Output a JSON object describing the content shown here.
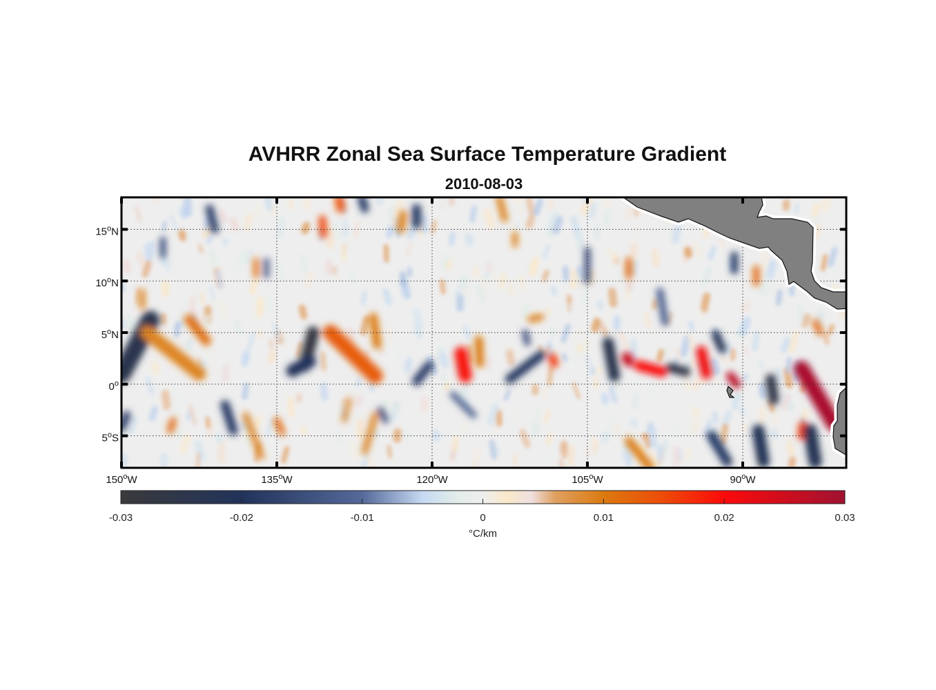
{
  "chart_data": {
    "type": "heatmap",
    "title": "AVHRR Zonal Sea Surface Temperature Gradient",
    "subtitle": "2010-08-03",
    "xlim": [
      -150,
      -80
    ],
    "ylim": [
      -8.1,
      18.1
    ],
    "x_ticks": [
      {
        "value": -150,
        "label": "150",
        "suffix": "W"
      },
      {
        "value": -135,
        "label": "135",
        "suffix": "W"
      },
      {
        "value": -120,
        "label": "120",
        "suffix": "W"
      },
      {
        "value": -105,
        "label": "105",
        "suffix": "W"
      },
      {
        "value": -90,
        "label": "90",
        "suffix": "W"
      }
    ],
    "y_ticks": [
      {
        "value": 15,
        "label": "15",
        "suffix": "N"
      },
      {
        "value": 10,
        "label": "10",
        "suffix": "N"
      },
      {
        "value": 5,
        "label": "5",
        "suffix": "N"
      },
      {
        "value": 0,
        "label": "0",
        "suffix": ""
      },
      {
        "value": -5,
        "label": "5",
        "suffix": "S"
      }
    ],
    "degree_symbol": "o",
    "grid": true,
    "colorbar": {
      "range": [
        -0.03,
        0.03
      ],
      "ticks": [
        "-0.03",
        "-0.02",
        "-0.01",
        "0",
        "0.01",
        "0.02",
        "0.03"
      ],
      "tick_values": [
        -0.03,
        -0.02,
        -0.01,
        0,
        0.01,
        0.02,
        0.03
      ],
      "label": "°C/km",
      "placement": "bottom",
      "colormap": [
        [
          -0.03,
          "#3a3a3c"
        ],
        [
          -0.02,
          "#22335a"
        ],
        [
          -0.01,
          "#55699a"
        ],
        [
          -0.005,
          "#c6d9f2"
        ],
        [
          -0.002,
          "#e4eee9"
        ],
        [
          0,
          "#eeeeee"
        ],
        [
          0.002,
          "#fbe8c8"
        ],
        [
          0.004,
          "#eedfe0"
        ],
        [
          0.006,
          "#e0a060"
        ],
        [
          0.01,
          "#dc7a10"
        ],
        [
          0.015,
          "#ee4a08"
        ],
        [
          0.02,
          "#fb0a0a"
        ],
        [
          0.03,
          "#a01232"
        ]
      ]
    },
    "land_color": "#808080",
    "features_note_units": "lon1, lat1, lon2, lat2, width_deg, value_C_per_km",
    "features": [
      [
        -150,
        1,
        -147.2,
        6.2,
        1.8,
        -0.024
      ],
      [
        -147.5,
        5,
        -142.5,
        1.0,
        1.3,
        0.009
      ],
      [
        -143.5,
        6.3,
        -141.8,
        4.2,
        0.9,
        0.011
      ],
      [
        -131.5,
        5,
        -132.3,
        1.8,
        1.2,
        -0.028
      ],
      [
        -133.5,
        1.3,
        -131.8,
        2.2,
        1.2,
        -0.02
      ],
      [
        -129.8,
        5,
        -125.5,
        0.8,
        1.5,
        0.013
      ],
      [
        -125.7,
        6.5,
        -125.3,
        3.8,
        0.8,
        0.01
      ],
      [
        -121.5,
        0.3,
        -120.3,
        1.8,
        0.9,
        -0.017
      ],
      [
        -117.2,
        3,
        -116.8,
        0.8,
        1.3,
        0.019
      ],
      [
        -115.5,
        4.3,
        -115.4,
        2,
        0.8,
        0.01
      ],
      [
        -112.5,
        0.5,
        -109.5,
        2.8,
        0.9,
        -0.019
      ],
      [
        -108.4,
        2.6,
        -108.2,
        2,
        0.8,
        0.016
      ],
      [
        -103,
        4,
        -102.4,
        0.8,
        1.1,
        -0.024
      ],
      [
        -101.2,
        2.6,
        -101,
        2.2,
        1.0,
        0.026
      ],
      [
        -100,
        1.8,
        -97.8,
        1.2,
        1.0,
        0.02
      ],
      [
        -97,
        1.6,
        -95.5,
        1.2,
        0.9,
        -0.026
      ],
      [
        -94,
        3.2,
        -93.5,
        1,
        1.0,
        0.021
      ],
      [
        -92.6,
        4.8,
        -92,
        3.4,
        0.8,
        -0.022
      ],
      [
        -91.2,
        0.8,
        -90.6,
        0,
        0.8,
        0.027
      ],
      [
        -87.3,
        0.5,
        -87,
        -1.5,
        1.0,
        -0.026
      ],
      [
        -84.3,
        1.5,
        -81.2,
        -3.8,
        1.5,
        0.029
      ],
      [
        -84.2,
        -4,
        -84.3,
        -5,
        0.8,
        0.016
      ],
      [
        -88.5,
        -4.5,
        -88,
        -7.5,
        1.2,
        -0.021
      ],
      [
        -83.5,
        -4.5,
        -83,
        -7.5,
        1.3,
        -0.022
      ],
      [
        -93,
        -5,
        -91.5,
        -7.5,
        1.0,
        -0.018
      ],
      [
        -130.6,
        16,
        -130.5,
        14.5,
        0.7,
        0.015
      ],
      [
        -129,
        18,
        -128.8,
        17,
        0.8,
        0.014
      ],
      [
        -126.8,
        18,
        -126.5,
        17,
        0.8,
        -0.018
      ],
      [
        -121.5,
        17,
        -121.5,
        15.5,
        0.9,
        -0.018
      ],
      [
        -122.8,
        16.5,
        -123,
        15,
        0.7,
        0.01
      ],
      [
        -141.5,
        17,
        -141,
        15,
        0.8,
        -0.017
      ],
      [
        -101,
        12,
        -101,
        10.5,
        0.6,
        0.012
      ],
      [
        -90.8,
        12.5,
        -90.8,
        11,
        0.7,
        -0.018
      ],
      [
        -88.7,
        11.2,
        -88.7,
        9.8,
        0.6,
        0.012
      ],
      [
        -113.5,
        18,
        -113,
        16,
        0.6,
        0.01
      ],
      [
        -112,
        14.5,
        -112,
        13.5,
        0.5,
        0.01
      ],
      [
        -111,
        5,
        -110.8,
        4,
        0.6,
        -0.015
      ],
      [
        -109.5,
        6.5,
        -110.5,
        6.3,
        0.6,
        0.01
      ],
      [
        -101,
        -5.5,
        -99,
        -8,
        0.8,
        0.01
      ],
      [
        -135,
        -3.5,
        -134.5,
        -4.7,
        0.6,
        0.012
      ],
      [
        -140,
        -2,
        -139.2,
        -4.5,
        0.9,
        -0.018
      ],
      [
        -145,
        -3.5,
        -145.3,
        -4.5,
        0.6,
        0.012
      ],
      [
        -149.5,
        -3,
        -150,
        -4.2,
        0.8,
        -0.017
      ],
      [
        -138,
        -3,
        -136.5,
        -7,
        0.6,
        0.009
      ],
      [
        -125.5,
        -3,
        -126.5,
        -6.5,
        0.6,
        0.009
      ],
      [
        -125,
        -2.5,
        -124.5,
        -3.5,
        0.6,
        -0.015
      ],
      [
        -118,
        -1,
        -116,
        -3,
        0.6,
        -0.012
      ],
      [
        -128,
        -1.5,
        -128.5,
        -3.5,
        0.5,
        0.008
      ],
      [
        -146,
        14,
        -146,
        12.5,
        0.6,
        -0.014
      ],
      [
        -137,
        12,
        -137,
        10.5,
        0.5,
        0.011
      ],
      [
        -136,
        12,
        -136,
        10.5,
        0.5,
        -0.014
      ],
      [
        -148,
        9,
        -148,
        7.5,
        0.5,
        0.01
      ],
      [
        -105,
        13,
        -105,
        10,
        0.6,
        -0.015
      ],
      [
        -98,
        9,
        -97.5,
        6,
        0.7,
        -0.012
      ],
      [
        -83,
        6,
        -82.5,
        5,
        0.6,
        0.012
      ]
    ]
  }
}
